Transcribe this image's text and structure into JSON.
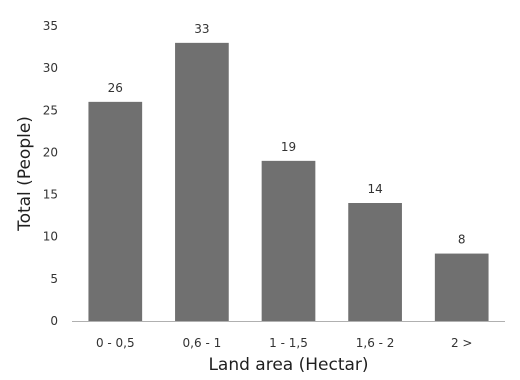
{
  "chart_data": {
    "type": "bar",
    "title": "",
    "xlabel": "Land area (Hectar)",
    "ylabel": "Total (People)",
    "categories": [
      "0 - 0,5",
      "0,6 - 1",
      "1 - 1,5",
      "1,6 - 2",
      "2 >"
    ],
    "values": [
      26,
      33,
      19,
      14,
      8
    ],
    "data_labels": [
      "26",
      "33",
      "19",
      "14",
      "8"
    ],
    "ylim": [
      0,
      35
    ],
    "yticks": [
      0,
      5,
      10,
      15,
      20,
      25,
      30,
      35
    ],
    "grid": false,
    "legend": "none",
    "bar_color": "#707070",
    "axis_color": "#b0b0b0",
    "text_color": "#333333"
  }
}
